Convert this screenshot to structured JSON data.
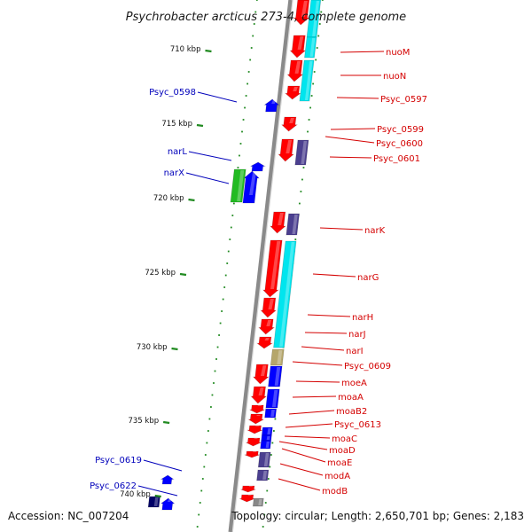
{
  "title": "Psychrobacter arcticus 273-4, complete genome",
  "footer": {
    "accession": "Accession: NC_007204",
    "summary": "Topology: circular; Length: 2,650,701 bp; Genes: 2,183"
  },
  "scale_labels": [
    "710 kbp",
    "715 kbp",
    "720 kbp",
    "725 kbp",
    "730 kbp",
    "735 kbp",
    "740 kbp"
  ],
  "colors": {
    "forward_label": "#d40000",
    "reverse_label": "#0000bb",
    "backbone": "#8a8a8a",
    "tick": "#228b22",
    "cds_forward": "#ff0000",
    "cds_reverse": "#0000ff",
    "cds_green": "#22bb22",
    "cds_purple": "#4b3f8f",
    "cds_tan": "#b5a66b",
    "cds_gray": "#888888",
    "cds_navy": "#000066",
    "cog_cyan": "#00e5ee"
  },
  "genes": {
    "forward": [
      "nuoM",
      "nuoN",
      "Psyc_0597",
      "Psyc_0599",
      "Psyc_0600",
      "Psyc_0601",
      "narK",
      "narG",
      "narH",
      "narJ",
      "narI",
      "Psyc_0609",
      "moeA",
      "moaA",
      "moaB2",
      "Psyc_0613",
      "moaC",
      "moaD",
      "moaE",
      "modA",
      "modB"
    ],
    "reverse": [
      "Psyc_0598",
      "narL",
      "narX",
      "Psyc_0619",
      "Psyc_0622"
    ]
  }
}
